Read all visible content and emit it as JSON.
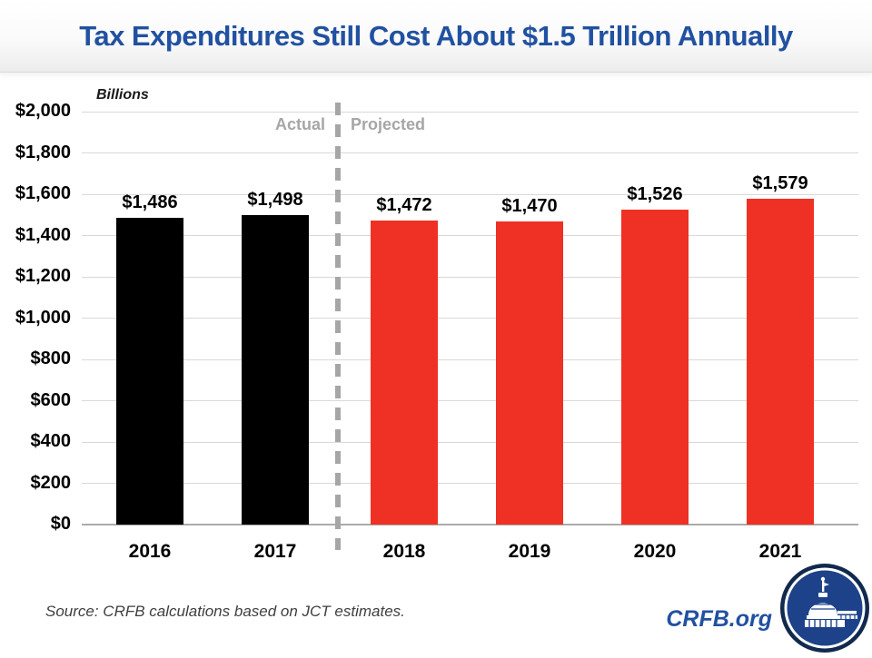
{
  "chart_data": {
    "type": "bar",
    "title": "Tax Expenditures Still Cost About $1.5 Trillion Annually",
    "ylabel": "Billions",
    "xlabel": "",
    "categories": [
      "2016",
      "2017",
      "2018",
      "2019",
      "2020",
      "2021"
    ],
    "values": [
      1486,
      1498,
      1472,
      1470,
      1526,
      1579
    ],
    "bar_labels": [
      "$1,486",
      "$1,498",
      "$1,472",
      "$1,470",
      "$1,526",
      "$1,579"
    ],
    "bar_colors": [
      "#000000",
      "#000000",
      "#EE3124",
      "#EE3124",
      "#EE3124",
      "#EE3124"
    ],
    "series": [
      {
        "name": "Actual",
        "categories": [
          "2016",
          "2017"
        ],
        "values": [
          1486,
          1498
        ],
        "color": "#000000"
      },
      {
        "name": "Projected",
        "categories": [
          "2018",
          "2019",
          "2020",
          "2021"
        ],
        "values": [
          1472,
          1470,
          1526,
          1579
        ],
        "color": "#EE3124"
      }
    ],
    "ylim": [
      0,
      2000
    ],
    "yticks": [
      {
        "value": 0,
        "label": "$0"
      },
      {
        "value": 200,
        "label": "$200"
      },
      {
        "value": 400,
        "label": "$400"
      },
      {
        "value": 600,
        "label": "$600"
      },
      {
        "value": 800,
        "label": "$800"
      },
      {
        "value": 1000,
        "label": "$1,000"
      },
      {
        "value": 1200,
        "label": "$1,200"
      },
      {
        "value": 1400,
        "label": "$1,400"
      },
      {
        "value": 1600,
        "label": "$1,600"
      },
      {
        "value": 1800,
        "label": "$1,800"
      },
      {
        "value": 2000,
        "label": "$2,000"
      }
    ],
    "grid": true,
    "legend": "none",
    "annotations": {
      "actual": "Actual",
      "projected": "Projected",
      "divider_after_category": "2017"
    }
  },
  "footer": {
    "source": "Source: CRFB calculations based on JCT estimates.",
    "brand": "CRFB.org",
    "logo": "capitol-dome-logo"
  },
  "colors": {
    "title_blue": "#2151A0",
    "actual_bar": "#000000",
    "projected_bar": "#EE3124",
    "gridline": "#D9D9D9",
    "phase_gray": "#A6A6A6",
    "logo_navy": "#12294E",
    "logo_blue": "#1D4289"
  }
}
